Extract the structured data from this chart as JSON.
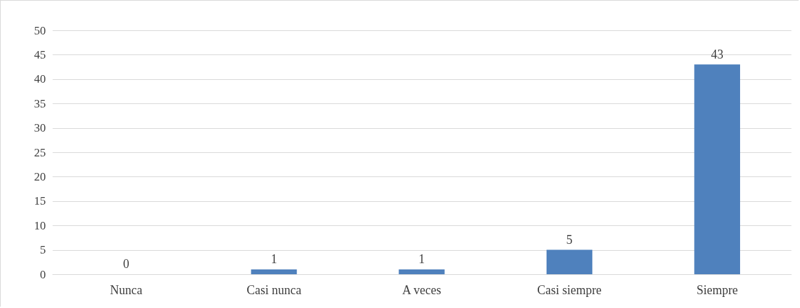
{
  "chart_data": {
    "type": "bar",
    "categories": [
      "Nunca",
      "Casi nunca",
      "A veces",
      "Casi siempre",
      "Siempre"
    ],
    "values": [
      0,
      1,
      1,
      5,
      43
    ],
    "color": "#4f81bd",
    "ylim": [
      0,
      50
    ],
    "yticks": [
      0,
      5,
      10,
      15,
      20,
      25,
      30,
      35,
      40,
      45,
      50
    ],
    "grid": "y",
    "data_labels": true
  }
}
